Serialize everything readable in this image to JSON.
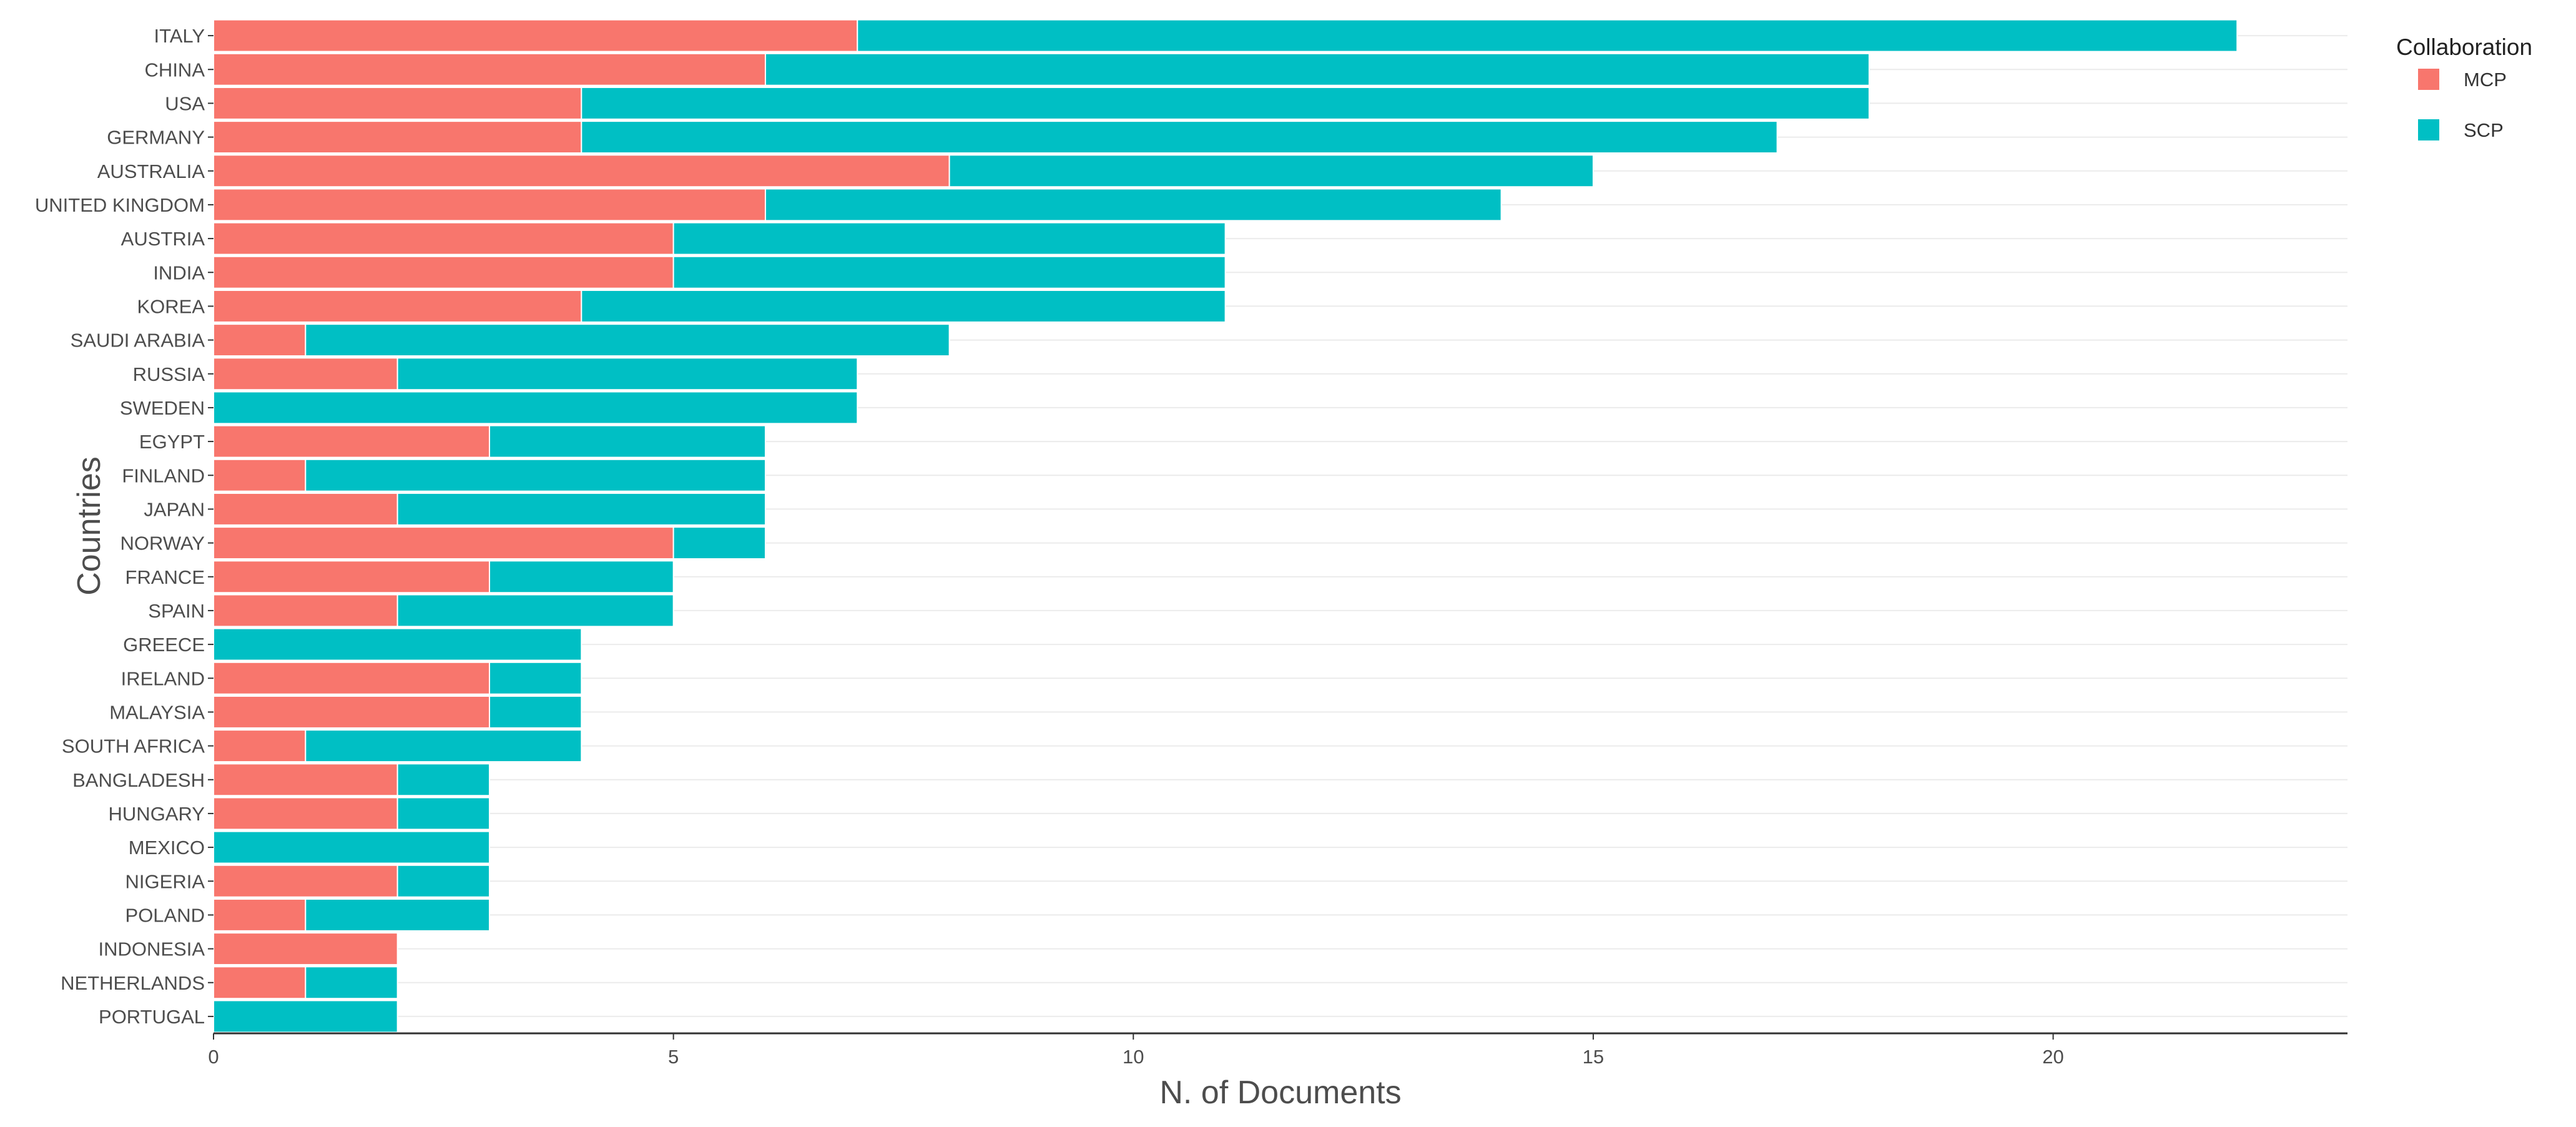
{
  "chart_data": {
    "type": "bar",
    "orientation": "horizontal",
    "stacked": true,
    "title": "",
    "xlabel": "N. of Documents",
    "ylabel": "Countries",
    "xlim": [
      0,
      23.2
    ],
    "xticks": [
      0,
      5,
      10,
      15,
      20
    ],
    "grid": true,
    "legend_position": "right",
    "legend_title": "Collaboration",
    "categories": [
      "ITALY",
      "CHINA",
      "USA",
      "GERMANY",
      "AUSTRALIA",
      "UNITED KINGDOM",
      "AUSTRIA",
      "INDIA",
      "KOREA",
      "SAUDI ARABIA",
      "RUSSIA",
      "SWEDEN",
      "EGYPT",
      "FINLAND",
      "JAPAN",
      "NORWAY",
      "FRANCE",
      "SPAIN",
      "GREECE",
      "IRELAND",
      "MALAYSIA",
      "SOUTH AFRICA",
      "BANGLADESH",
      "HUNGARY",
      "MEXICO",
      "NIGERIA",
      "POLAND",
      "INDONESIA",
      "NETHERLANDS",
      "PORTUGAL"
    ],
    "series": [
      {
        "name": "MCP",
        "color": "#F8766D",
        "values": [
          7,
          6,
          4,
          4,
          8,
          6,
          5,
          5,
          4,
          1,
          2,
          0,
          3,
          1,
          2,
          5,
          3,
          2,
          0,
          3,
          3,
          1,
          2,
          2,
          0,
          2,
          1,
          2,
          1,
          0
        ]
      },
      {
        "name": "SCP",
        "color": "#00BFC4",
        "values": [
          15,
          12,
          14,
          13,
          7,
          8,
          6,
          6,
          7,
          7,
          5,
          7,
          3,
          5,
          4,
          1,
          2,
          3,
          4,
          1,
          1,
          3,
          1,
          1,
          3,
          1,
          2,
          0,
          1,
          2
        ]
      }
    ]
  }
}
